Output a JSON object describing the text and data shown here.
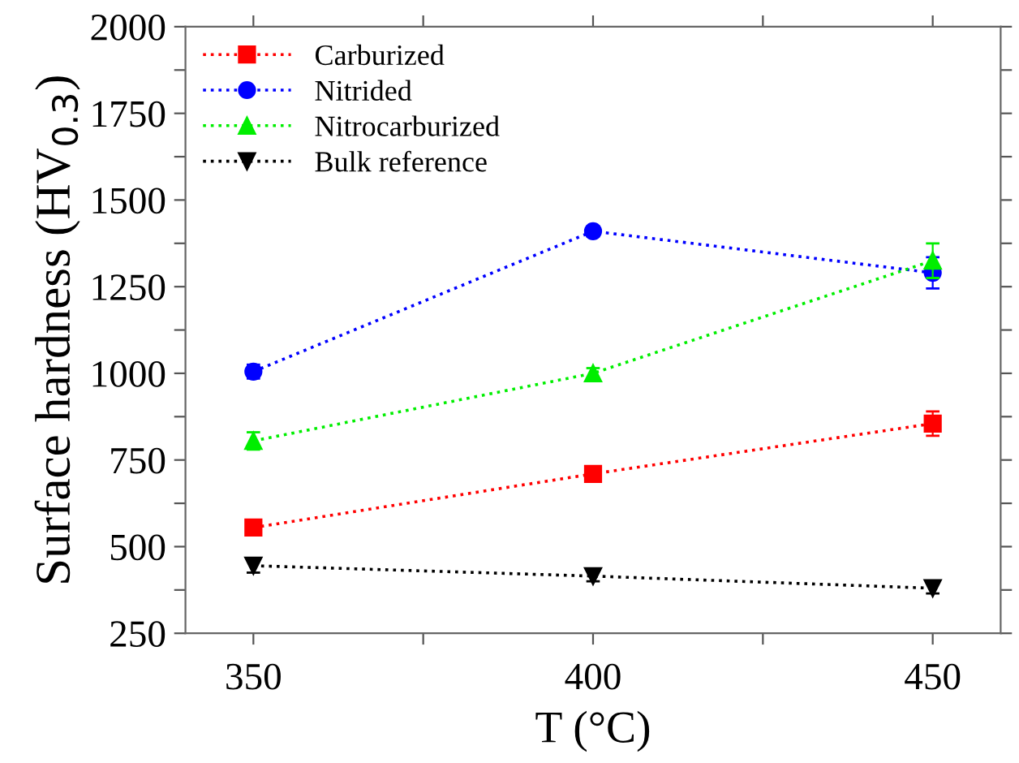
{
  "chart_data": {
    "type": "line",
    "xlabel": "T (°C)",
    "ylabel": "Surface hardness (HV$_{0.3}$)",
    "x": [
      350,
      400,
      450
    ],
    "series": [
      {
        "name": "Carburized",
        "color": "#ff0000",
        "marker": "square",
        "values": [
          555,
          710,
          855
        ],
        "errors": [
          10,
          10,
          35
        ]
      },
      {
        "name": "Nitrided",
        "color": "#0000ff",
        "marker": "circle",
        "values": [
          1005,
          1410,
          1290
        ],
        "errors": [
          20,
          15,
          45
        ]
      },
      {
        "name": "Nitrocarburized",
        "color": "#00ee00",
        "marker": "triangle",
        "values": [
          805,
          1000,
          1325
        ],
        "errors": [
          25,
          15,
          50
        ]
      },
      {
        "name": "Bulk reference",
        "color": "#000000",
        "marker": "triangle_down",
        "values": [
          445,
          415,
          380
        ],
        "errors": [
          20,
          15,
          15
        ]
      }
    ],
    "xlim": [
      340,
      460
    ],
    "ylim": [
      250,
      2000
    ],
    "xticks": [
      350,
      {
        "value": 375,
        "label": null
      },
      400,
      {
        "value": 425,
        "label": null
      },
      450
    ],
    "yticks": [
      250,
      {
        "value": 375,
        "label": null
      },
      500,
      {
        "value": 625,
        "label": null
      },
      750,
      {
        "value": 875,
        "label": null
      },
      1000,
      {
        "value": 1125,
        "label": null
      },
      1250,
      {
        "value": 1375,
        "label": null
      },
      1500,
      {
        "value": 1625,
        "label": null
      },
      1750,
      {
        "value": 1875,
        "label": null
      },
      2000
    ],
    "line_style": "dotted",
    "legend": "top left",
    "grid": false
  }
}
